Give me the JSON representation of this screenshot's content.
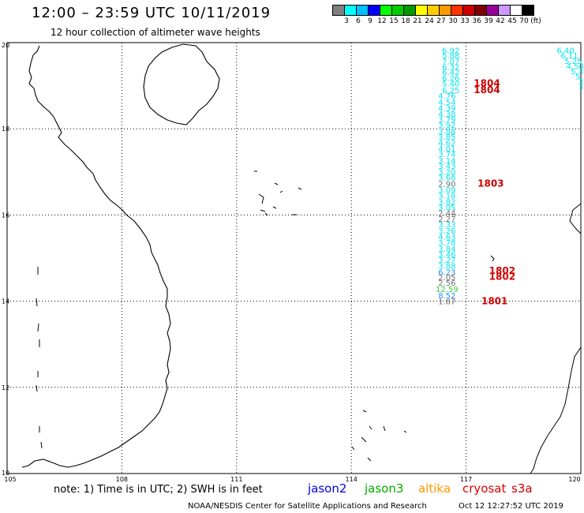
{
  "header": {
    "title": "12:00 – 23:59 UTC 10/11/2019",
    "subtitle": "12 hour collection of altimeter wave heights"
  },
  "scale": {
    "colors": [
      "#7f7f7f",
      "#00ffff",
      "#00bfff",
      "#0000ff",
      "#00ff00",
      "#00cc00",
      "#009900",
      "#ffff00",
      "#ffcc00",
      "#ff9900",
      "#ff3300",
      "#cc0000",
      "#800000",
      "#990099",
      "#cc99ff",
      "#ffffff",
      "#000000"
    ],
    "labels": [
      "3",
      "6",
      "9",
      "12",
      "15",
      "18",
      "21",
      "24",
      "27",
      "30",
      "33",
      "36",
      "39",
      "42",
      "45",
      "70",
      "(ft)"
    ]
  },
  "axes": {
    "x_ticks": [
      "105",
      "108",
      "111",
      "114",
      "117",
      "120"
    ],
    "y_ticks": [
      "20",
      "18",
      "16",
      "14",
      "12",
      "10"
    ]
  },
  "chart_data": {
    "type": "scatter",
    "xlim": [
      105,
      120
    ],
    "ylim": [
      10,
      20
    ],
    "grid": true,
    "series": [
      {
        "track": "main",
        "points": [
          {
            "x": 116.6,
            "y": 19.75,
            "v": "6.92",
            "c": "#00e5ee"
          },
          {
            "x": 116.6,
            "y": 19.63,
            "v": "5.88",
            "c": "#00e5ee"
          },
          {
            "x": 116.6,
            "y": 19.5,
            "v": "7.07",
            "c": "#00e5ee"
          },
          {
            "x": 116.6,
            "y": 19.37,
            "v": "6.32",
            "c": "#00e5ee"
          },
          {
            "x": 116.6,
            "y": 19.25,
            "v": "6.42",
            "c": "#00e5ee"
          },
          {
            "x": 116.6,
            "y": 19.11,
            "v": "6.26",
            "c": "#00e5ee"
          },
          {
            "x": 116.6,
            "y": 18.98,
            "v": "5.40",
            "c": "#00e5ee"
          },
          {
            "x": 116.6,
            "y": 18.83,
            "v": "6.25",
            "c": "#00e5ee"
          },
          {
            "x": 116.5,
            "y": 18.7,
            "v": "4.76",
            "c": "#00e5ee"
          },
          {
            "x": 116.5,
            "y": 18.55,
            "v": "4.54",
            "c": "#00e5ee"
          },
          {
            "x": 116.5,
            "y": 18.42,
            "v": "4.39",
            "c": "#00e5ee"
          },
          {
            "x": 116.5,
            "y": 18.28,
            "v": "4.38",
            "c": "#00e5ee"
          },
          {
            "x": 116.5,
            "y": 18.15,
            "v": "3.79",
            "c": "#00e5ee"
          },
          {
            "x": 116.5,
            "y": 18.02,
            "v": "3.92",
            "c": "#00e5ee"
          },
          {
            "x": 116.5,
            "y": 17.88,
            "v": "3.88",
            "c": "#00e5ee"
          },
          {
            "x": 116.5,
            "y": 17.75,
            "v": "3.85",
            "c": "#00e5ee"
          },
          {
            "x": 116.5,
            "y": 17.61,
            "v": "4.62",
            "c": "#00e5ee"
          },
          {
            "x": 116.5,
            "y": 17.47,
            "v": "4.01",
            "c": "#00e5ee"
          },
          {
            "x": 116.5,
            "y": 17.34,
            "v": "3.74",
            "c": "#00e5ee"
          },
          {
            "x": 116.5,
            "y": 17.2,
            "v": "3.14",
            "c": "#00e5ee"
          },
          {
            "x": 116.5,
            "y": 17.07,
            "v": "3.43",
            "c": "#00e5ee"
          },
          {
            "x": 116.5,
            "y": 16.93,
            "v": "3.20",
            "c": "#00e5ee"
          },
          {
            "x": 116.5,
            "y": 16.8,
            "v": "3.68",
            "c": "#00e5ee"
          },
          {
            "x": 116.5,
            "y": 16.66,
            "v": "2.90",
            "c": "#707070"
          },
          {
            "x": 116.5,
            "y": 16.52,
            "v": "3.09",
            "c": "#00e5ee"
          },
          {
            "x": 116.5,
            "y": 16.38,
            "v": "3.18",
            "c": "#00e5ee"
          },
          {
            "x": 116.5,
            "y": 16.24,
            "v": "3.82",
            "c": "#00e5ee"
          },
          {
            "x": 116.5,
            "y": 16.11,
            "v": "3.05",
            "c": "#00e5ee"
          },
          {
            "x": 116.5,
            "y": 15.98,
            "v": "2.44",
            "c": "#707070"
          },
          {
            "x": 116.5,
            "y": 15.84,
            "v": "2.27",
            "c": "#707070"
          },
          {
            "x": 116.5,
            "y": 15.71,
            "v": "3.33",
            "c": "#00e5ee"
          },
          {
            "x": 116.5,
            "y": 15.57,
            "v": "3.26",
            "c": "#00e5ee"
          },
          {
            "x": 116.5,
            "y": 15.43,
            "v": "4.63",
            "c": "#00e5ee"
          },
          {
            "x": 116.5,
            "y": 15.29,
            "v": "3.78",
            "c": "#00e5ee"
          },
          {
            "x": 116.5,
            "y": 15.15,
            "v": "3.84",
            "c": "#00e5ee"
          },
          {
            "x": 116.5,
            "y": 15.02,
            "v": "3.46",
            "c": "#00e5ee"
          },
          {
            "x": 116.5,
            "y": 14.89,
            "v": "3.27",
            "c": "#00e5ee"
          },
          {
            "x": 116.5,
            "y": 14.75,
            "v": "3.88",
            "c": "#00e5ee"
          },
          {
            "x": 116.5,
            "y": 14.61,
            "v": "6.23",
            "c": "#1e90ff"
          },
          {
            "x": 116.5,
            "y": 14.49,
            "v": "2.05",
            "c": "#707070"
          },
          {
            "x": 116.5,
            "y": 14.36,
            "v": "2.56",
            "c": "#707070"
          },
          {
            "x": 116.5,
            "y": 14.21,
            "v": "12.59",
            "c": "#33cc33"
          },
          {
            "x": 116.5,
            "y": 14.07,
            "v": "8.52",
            "c": "#1e90ff"
          },
          {
            "x": 116.5,
            "y": 13.93,
            "v": "1.87",
            "c": "#707070"
          }
        ]
      },
      {
        "track": "east",
        "points": [
          {
            "x": 119.6,
            "y": 19.75,
            "v": "6.40",
            "c": "#00e5ee"
          },
          {
            "x": 119.7,
            "y": 19.63,
            "v": "6.11",
            "c": "#00e5ee"
          },
          {
            "x": 119.8,
            "y": 19.51,
            "v": "5.25",
            "c": "#00e5ee"
          },
          {
            "x": 119.85,
            "y": 19.39,
            "v": "4.50",
            "c": "#00e5ee"
          },
          {
            "x": 119.9,
            "y": 19.27,
            "v": "5.3",
            "c": "#00e5ee"
          },
          {
            "x": 119.95,
            "y": 19.15,
            "v": "5.",
            "c": "#00e5ee"
          },
          {
            "x": 120.0,
            "y": 19.03,
            "v": "3",
            "c": "#00e5ee"
          },
          {
            "x": 120.0,
            "y": 18.91,
            "v": "3",
            "c": "#00e5ee"
          }
        ]
      }
    ],
    "track_ids": [
      {
        "x": 117.2,
        "y": 18.98,
        "label": "1804"
      },
      {
        "x": 117.2,
        "y": 18.83,
        "label": "1804"
      },
      {
        "x": 117.3,
        "y": 16.66,
        "label": "1803"
      },
      {
        "x": 117.6,
        "y": 14.63,
        "label": "1802"
      },
      {
        "x": 117.6,
        "y": 14.5,
        "label": "1802"
      },
      {
        "x": 117.4,
        "y": 13.93,
        "label": "1801"
      }
    ]
  },
  "footer": {
    "note": "note:  1) Time is in UTC;  2) SWH is in feet",
    "satellites": [
      {
        "name": "jason2",
        "color": "#0000ee"
      },
      {
        "name": "jason3",
        "color": "#00aa00"
      },
      {
        "name": "altika",
        "color": "#ff9900"
      },
      {
        "name": "cryosat",
        "color": "#dd0000"
      },
      {
        "name": "s3a",
        "color": "#cc0000"
      }
    ],
    "credit": "NOAA/NESDIS Center for Satellite Applications and Research",
    "timestamp": "Oct 12 12:27:52 UTC 2019"
  }
}
